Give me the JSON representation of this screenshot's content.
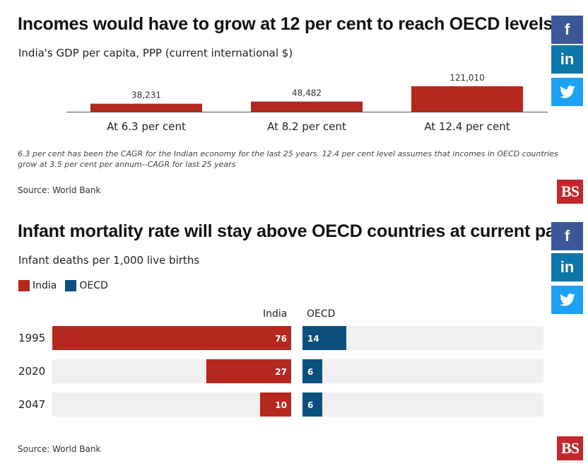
{
  "chart1": {
    "title": "Incomes would have to grow at 12 per cent to reach OECD levels",
    "subtitle": "India's GDP per capita, PPP (current international $)",
    "note": "6.3 per cent has been the CAGR for the Indian economy for the last 25 years. 12.4 per cent level assumes that incomes in OECD countries grow at 3.5 per cent per annum--CAGR for last 25 years",
    "source": "Source: World Bank"
  },
  "chart2": {
    "title": "Infant mortality rate will stay above OECD countries at current pace",
    "subtitle": "Infant deaths per 1,000 live births",
    "legend": [
      "India",
      "OECD"
    ],
    "col_headers": [
      "India",
      "OECD"
    ],
    "source": "Source: World Bank"
  },
  "share": {
    "facebook": "f",
    "linkedin": "in",
    "twitter": "twitter-bird-icon"
  },
  "logo_text": "BS",
  "colors": {
    "india": "#b5281e",
    "oecd": "#0b4f7c",
    "track": "#f0f0f0",
    "bar1": "#b5281e"
  },
  "chart_data": [
    {
      "type": "bar",
      "categories": [
        "At 6.3 per cent",
        "At 8.2 per cent",
        "At 12.4 per cent"
      ],
      "values": [
        38231,
        48482,
        121010
      ],
      "labels": [
        "38,231",
        "48,482",
        "121,010"
      ],
      "title": "Incomes would have to grow at 12 per cent to reach OECD levels",
      "ylabel": "India's GDP per capita, PPP (current international $)",
      "ylim": [
        0,
        121010
      ]
    },
    {
      "type": "bar",
      "orientation": "horizontal-butterfly",
      "categories": [
        "1995",
        "2020",
        "2047"
      ],
      "series": [
        {
          "name": "India",
          "values": [
            76,
            27,
            10
          ]
        },
        {
          "name": "OECD",
          "values": [
            14,
            6,
            6
          ]
        }
      ],
      "title": "Infant mortality rate will stay above OECD countries at current pace",
      "ylabel": "Infant deaths per 1,000 live births",
      "xlim": [
        0,
        76
      ]
    }
  ]
}
